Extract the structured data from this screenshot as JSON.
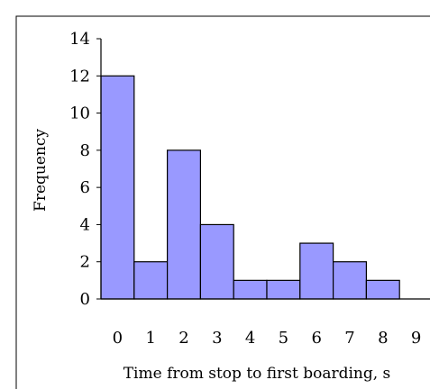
{
  "chart_data": {
    "type": "bar",
    "categories": [
      "0",
      "1",
      "2",
      "3",
      "4",
      "5",
      "6",
      "7",
      "8",
      "9"
    ],
    "values": [
      12,
      2,
      8,
      4,
      1,
      1,
      3,
      2,
      1,
      0
    ],
    "title": "",
    "xlabel": "Time from stop to first boarding, s",
    "ylabel": "Frequency",
    "ylim": [
      0,
      14
    ],
    "yticks": [
      "0",
      "2",
      "4",
      "6",
      "8",
      "10",
      "12",
      "14"
    ],
    "grid": false,
    "legend": "none",
    "colors": {
      "bar_fill": "#9999ff",
      "bar_stroke": "#000000",
      "axis": "#000000",
      "frame": "#000000"
    }
  }
}
